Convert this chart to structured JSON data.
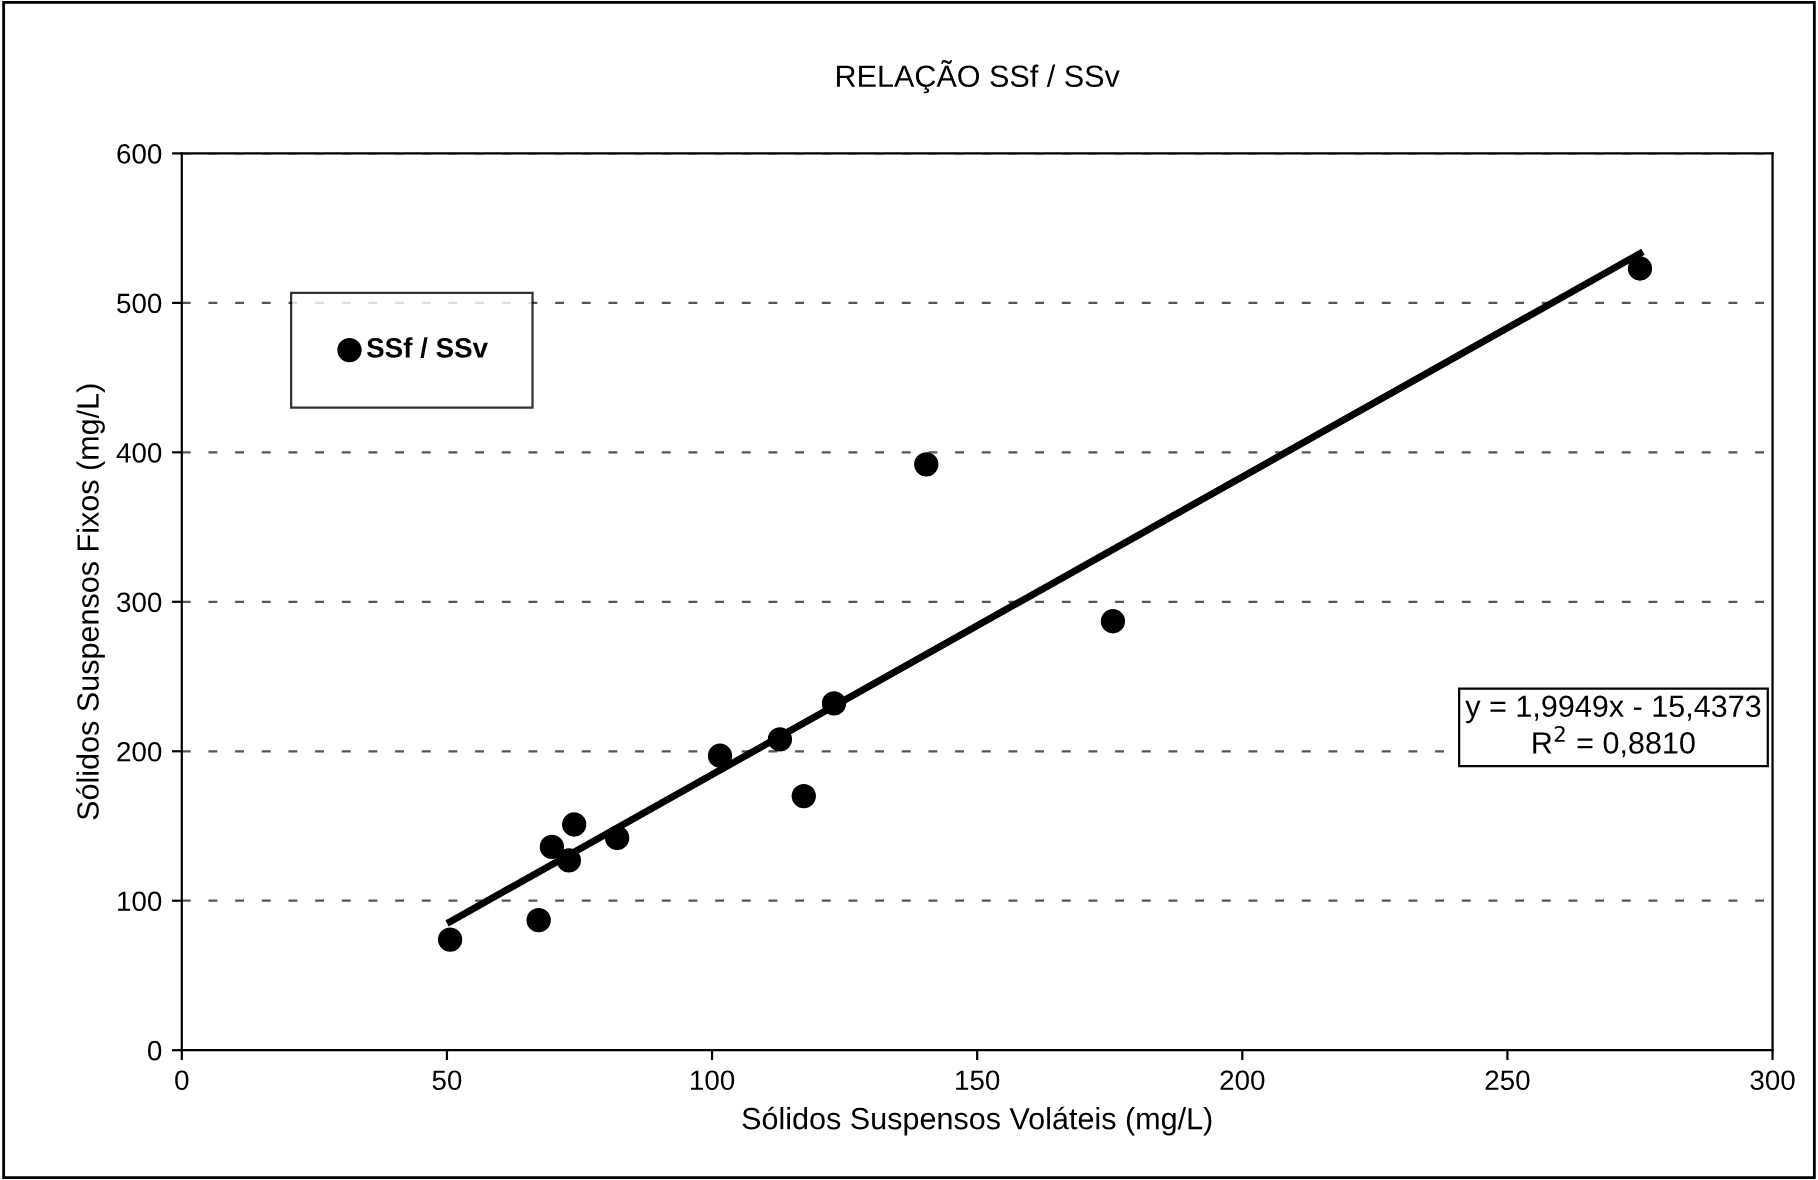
{
  "chart_data": {
    "type": "scatter",
    "title": "RELAÇÃO SSf / SSv",
    "xlabel": "Sólidos Suspensos Voláteis (mg/L)",
    "ylabel": "Sólidos Suspensos Fixos (mg/L)",
    "series": [
      {
        "name": "SSf / SSv",
        "color": "#000000",
        "marker": "circle",
        "x": [
          50.6,
          67.3,
          69.8,
          73,
          74,
          82.1,
          101.5,
          112.8,
          117.3,
          123,
          140.4,
          175.6,
          275
        ],
        "values": [
          74,
          87,
          136,
          127,
          151,
          142,
          197,
          208,
          170,
          232,
          392,
          287,
          523
        ]
      },
      {
        "type": "line",
        "color": "#000000",
        "marker": "none",
        "x": [
          50.6,
          275
        ],
        "values": [
          86,
          533
        ]
      }
    ],
    "annotations": [
      "y = 1,9949x - 15,4373\nR$^{2}$ = 0,8810"
    ],
    "xlim": [
      0,
      300
    ],
    "xticks": [
      0,
      50,
      100,
      150,
      200,
      250,
      300
    ],
    "ylim": [
      0,
      600
    ],
    "yticks": [
      0,
      100,
      200,
      300,
      400,
      500,
      600
    ],
    "grid": "y",
    "legend": "top left"
  }
}
